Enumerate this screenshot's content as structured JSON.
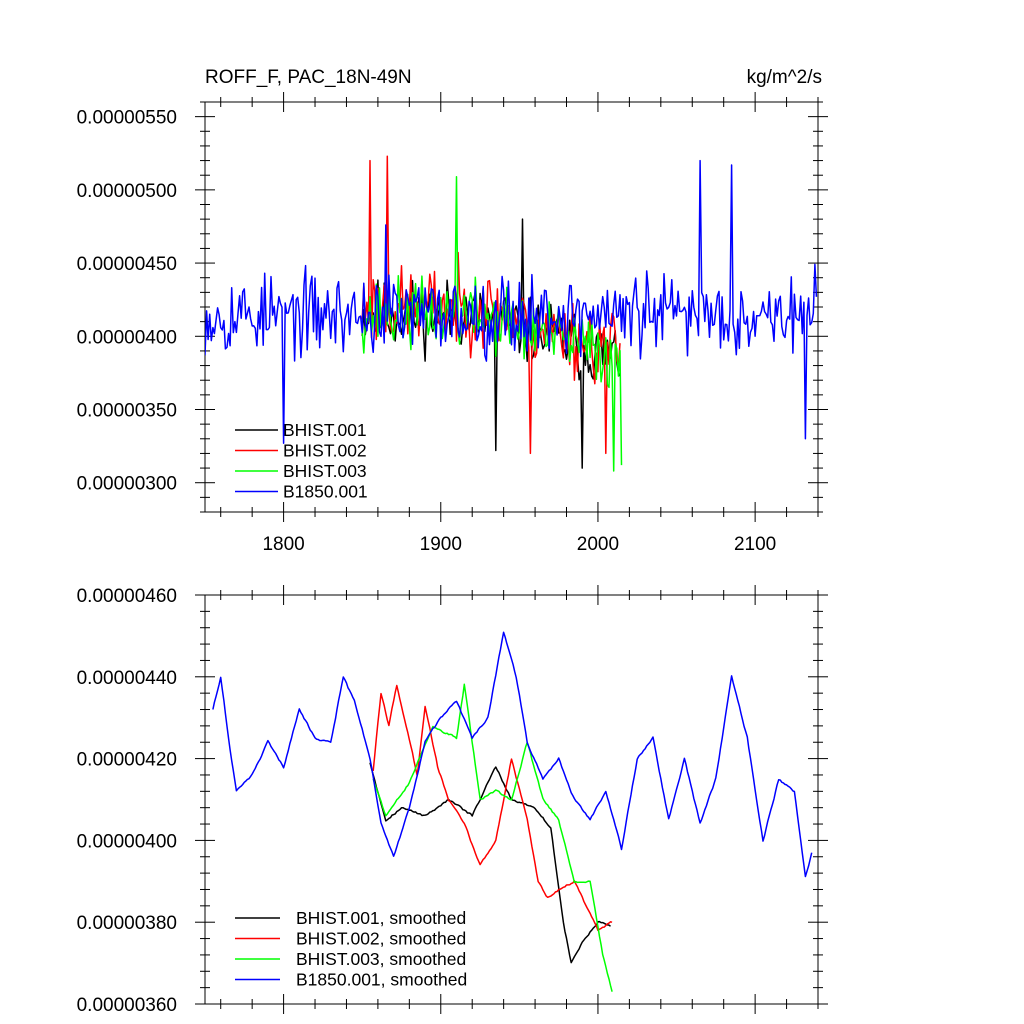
{
  "chart_data": [
    {
      "type": "line",
      "title_left": "ROFF_F, PAC_18N-49N",
      "title_right": "kg/m^2/s",
      "xlim": [
        1750,
        2140
      ],
      "ylim": [
        2.8e-06,
        5.6e-06
      ],
      "x_ticks": [
        1800,
        1900,
        2000,
        2100
      ],
      "x_tick_labels": [
        "1800",
        "1900",
        "2000",
        "2100"
      ],
      "x_minor_step": 20,
      "y_ticks": [
        3e-06,
        3.5e-06,
        4e-06,
        4.5e-06,
        5e-06,
        5.5e-06
      ],
      "y_tick_labels": [
        "0.00000300",
        "0.00000350",
        "0.00000400",
        "0.00000450",
        "0.00000500",
        "0.00000550"
      ],
      "y_minor_step": 1e-07,
      "legend": [
        "BHIST.001",
        "BHIST.002",
        "BHIST.003",
        "B1850.001"
      ],
      "legend_position": "bottom-left",
      "series": [
        {
          "name": "BHIST.001",
          "color": "#000000",
          "x_start": 1850,
          "x_end": 2014,
          "mean": 4.15e-06,
          "amplitude": 3.5e-07,
          "trend": -3e-07,
          "seed": 11,
          "samples": [
            [
              1935,
              3.22e-06
            ],
            [
              1990,
              3.1e-06
            ],
            [
              1952,
              4.8e-06
            ]
          ]
        },
        {
          "name": "BHIST.002",
          "color": "#ff0000",
          "x_start": 1850,
          "x_end": 2014,
          "mean": 4.2e-06,
          "amplitude": 4e-07,
          "trend": -3e-07,
          "seed": 23,
          "samples": [
            [
              1855,
              5.2e-06
            ],
            [
              1866,
              5.23e-06
            ],
            [
              1957,
              3.2e-06
            ],
            [
              2005,
              3.2e-06
            ]
          ]
        },
        {
          "name": "BHIST.003",
          "color": "#00ff00",
          "x_start": 1850,
          "x_end": 2015,
          "mean": 4.15e-06,
          "amplitude": 3.5e-07,
          "trend": -3e-07,
          "seed": 37,
          "samples": [
            [
              1910,
              5.09e-06
            ],
            [
              2010,
              3.08e-06
            ],
            [
              2015,
              3.12e-06
            ]
          ]
        },
        {
          "name": "B1850.001",
          "color": "#0000ff",
          "x_start": 1750,
          "x_end": 2139,
          "mean": 4.15e-06,
          "amplitude": 4e-07,
          "trend": 0.0,
          "seed": 53,
          "samples": [
            [
              1800,
              3.27e-06
            ],
            [
              1865,
              4.76e-06
            ],
            [
              2065,
              5.2e-06
            ],
            [
              2085,
              5.17e-06
            ],
            [
              2132,
              3.3e-06
            ]
          ]
        }
      ]
    },
    {
      "type": "line",
      "xlim": [
        1750,
        2140
      ],
      "ylim": [
        3.6e-06,
        4.6e-06
      ],
      "x_ticks": [
        1800,
        1900,
        2000,
        2100
      ],
      "x_tick_labels": [],
      "x_minor_step": 20,
      "y_ticks": [
        3.6e-06,
        3.8e-06,
        4e-06,
        4.2e-06,
        4.4e-06,
        4.6e-06
      ],
      "y_tick_labels": [
        "0.00000360",
        "0.00000380",
        "0.00000400",
        "0.00000420",
        "0.00000440",
        "0.00000460"
      ],
      "y_minor_step": 4e-08,
      "legend": [
        "BHIST.001, smoothed",
        "BHIST.002, smoothed",
        "BHIST.003, smoothed",
        "B1850.001, smoothed"
      ],
      "legend_position": "bottom-left",
      "series": [
        {
          "name": "BHIST.001, smoothed",
          "color": "#000000",
          "anchors": [
            [
              1855,
              4.19e-06
            ],
            [
              1865,
              4.05e-06
            ],
            [
              1875,
              4.08e-06
            ],
            [
              1890,
              4.06e-06
            ],
            [
              1905,
              4.1e-06
            ],
            [
              1920,
              4.06e-06
            ],
            [
              1935,
              4.18e-06
            ],
            [
              1945,
              4.1e-06
            ],
            [
              1960,
              4.08e-06
            ],
            [
              1970,
              4.03e-06
            ],
            [
              1978,
              3.8e-06
            ],
            [
              1983,
              3.7e-06
            ],
            [
              1990,
              3.75e-06
            ],
            [
              2000,
              3.8e-06
            ],
            [
              2008,
              3.79e-06
            ]
          ]
        },
        {
          "name": "BHIST.002, smoothed",
          "color": "#ff0000",
          "anchors": [
            [
              1857,
              4.17e-06
            ],
            [
              1862,
              4.36e-06
            ],
            [
              1867,
              4.28e-06
            ],
            [
              1872,
              4.38e-06
            ],
            [
              1878,
              4.28e-06
            ],
            [
              1885,
              4.16e-06
            ],
            [
              1890,
              4.33e-06
            ],
            [
              1898,
              4.18e-06
            ],
            [
              1905,
              4.1e-06
            ],
            [
              1915,
              4.04e-06
            ],
            [
              1925,
              3.94e-06
            ],
            [
              1935,
              4e-06
            ],
            [
              1945,
              4.2e-06
            ],
            [
              1955,
              4.05e-06
            ],
            [
              1962,
              3.9e-06
            ],
            [
              1968,
              3.86e-06
            ],
            [
              1975,
              3.88e-06
            ],
            [
              1985,
              3.9e-06
            ],
            [
              2000,
              3.78e-06
            ],
            [
              2009,
              3.8e-06
            ]
          ]
        },
        {
          "name": "BHIST.003, smoothed",
          "color": "#00ff00",
          "anchors": [
            [
              1857,
              4.15e-06
            ],
            [
              1865,
              4.06e-06
            ],
            [
              1880,
              4.14e-06
            ],
            [
              1895,
              4.28e-06
            ],
            [
              1910,
              4.25e-06
            ],
            [
              1915,
              4.38e-06
            ],
            [
              1925,
              4.1e-06
            ],
            [
              1935,
              4.12e-06
            ],
            [
              1945,
              4.1e-06
            ],
            [
              1955,
              4.24e-06
            ],
            [
              1965,
              4.1e-06
            ],
            [
              1975,
              4.05e-06
            ],
            [
              1985,
              3.9e-06
            ],
            [
              1995,
              3.9e-06
            ],
            [
              2003,
              3.72e-06
            ],
            [
              2009,
              3.63e-06
            ]
          ]
        },
        {
          "name": "B1850.001, smoothed",
          "color": "#0000ff",
          "anchors": [
            [
              1755,
              4.32e-06
            ],
            [
              1760,
              4.4e-06
            ],
            [
              1765,
              4.25e-06
            ],
            [
              1770,
              4.12e-06
            ],
            [
              1780,
              4.16e-06
            ],
            [
              1790,
              4.24e-06
            ],
            [
              1800,
              4.18e-06
            ],
            [
              1810,
              4.32e-06
            ],
            [
              1820,
              4.25e-06
            ],
            [
              1830,
              4.24e-06
            ],
            [
              1838,
              4.4e-06
            ],
            [
              1845,
              4.34e-06
            ],
            [
              1855,
              4.2e-06
            ],
            [
              1862,
              4.04e-06
            ],
            [
              1870,
              3.96e-06
            ],
            [
              1880,
              4.08e-06
            ],
            [
              1890,
              4.24e-06
            ],
            [
              1900,
              4.3e-06
            ],
            [
              1910,
              4.34e-06
            ],
            [
              1920,
              4.25e-06
            ],
            [
              1930,
              4.3e-06
            ],
            [
              1940,
              4.51e-06
            ],
            [
              1948,
              4.4e-06
            ],
            [
              1955,
              4.24e-06
            ],
            [
              1965,
              4.15e-06
            ],
            [
              1975,
              4.2e-06
            ],
            [
              1985,
              4.1e-06
            ],
            [
              1995,
              4.05e-06
            ],
            [
              2005,
              4.12e-06
            ],
            [
              2015,
              3.98e-06
            ],
            [
              2025,
              4.2e-06
            ],
            [
              2035,
              4.25e-06
            ],
            [
              2045,
              4.05e-06
            ],
            [
              2055,
              4.2e-06
            ],
            [
              2065,
              4.04e-06
            ],
            [
              2075,
              4.15e-06
            ],
            [
              2085,
              4.4e-06
            ],
            [
              2095,
              4.25e-06
            ],
            [
              2105,
              4e-06
            ],
            [
              2115,
              4.15e-06
            ],
            [
              2125,
              4.12e-06
            ],
            [
              2132,
              3.91e-06
            ],
            [
              2136,
              3.97e-06
            ]
          ]
        }
      ]
    }
  ]
}
